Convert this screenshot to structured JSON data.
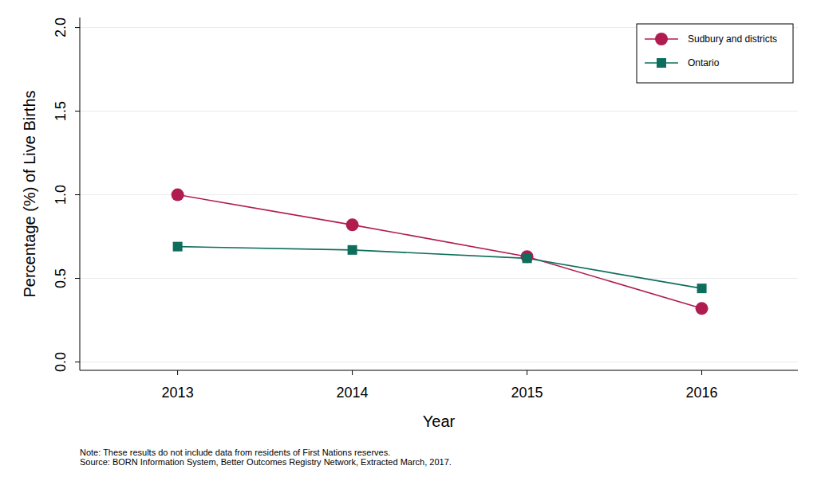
{
  "chart_data": {
    "type": "line",
    "x_label": "Year",
    "y_label": "Percentage (%) of Live Births",
    "x": [
      2013,
      2014,
      2015,
      2016
    ],
    "xlim": [
      2012.44,
      2016.55
    ],
    "xticks": [
      2013,
      2014,
      2015,
      2016
    ],
    "ylim": [
      -0.05,
      2.06
    ],
    "yticks": [
      {
        "value": 0,
        "label": "0.0"
      },
      {
        "value": 0.5,
        "label": "0.5"
      },
      {
        "value": 1,
        "label": "1.0"
      },
      {
        "value": 1.5,
        "label": "1.5"
      },
      {
        "value": 2,
        "label": "2.0"
      }
    ],
    "grid": true,
    "legend": "top-right",
    "series": [
      {
        "name": "Sudbury and districts",
        "color": "#b01c50",
        "marker": "circle",
        "values": [
          1.0,
          0.82,
          0.63,
          0.32
        ]
      },
      {
        "name": "Ontario",
        "color": "#0e6e5c",
        "marker": "square",
        "values": [
          0.69,
          0.67,
          0.62,
          0.44
        ]
      }
    ],
    "notes": [
      "Note: These results do not include data from residents of First Nations reserves.",
      "Source: BORN Information System, Better Outcomes Registry Network, Extracted March, 2017."
    ]
  }
}
